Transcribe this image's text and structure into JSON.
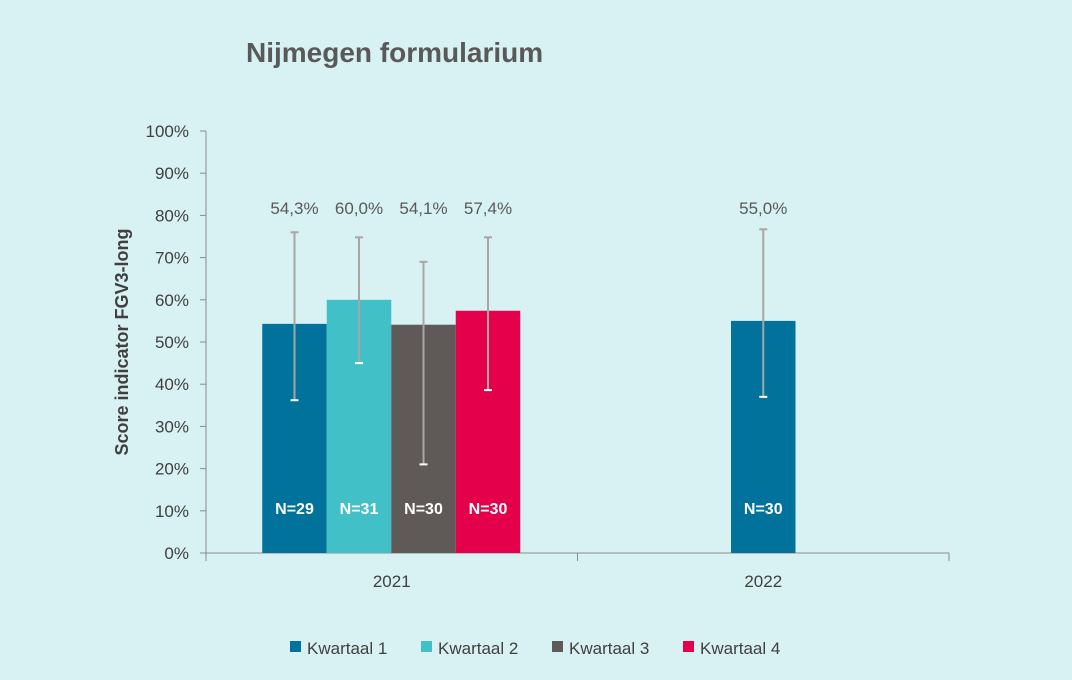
{
  "chart_data": {
    "type": "bar",
    "title": "Nijmegen formularium",
    "ylabel": "Score indicator FGV3-long",
    "xlabel": "",
    "ylim": [
      0,
      100
    ],
    "y_ticks": [
      "0%",
      "10%",
      "20%",
      "30%",
      "40%",
      "50%",
      "60%",
      "70%",
      "80%",
      "90%",
      "100%"
    ],
    "categories": [
      "2021",
      "2022"
    ],
    "legend_position": "bottom",
    "grid": false,
    "series": [
      {
        "name": "Kwartaal 1",
        "color": "#00729b",
        "values": [
          54.3,
          55.0
        ],
        "labels": [
          "54,3%",
          "55,0%"
        ],
        "n": [
          "N=29",
          "N=30"
        ],
        "err_low": [
          36.2,
          37.0
        ],
        "err_high": [
          76.0,
          76.7
        ]
      },
      {
        "name": "Kwartaal 2",
        "color": "#41c1c7",
        "values": [
          60.0,
          null
        ],
        "labels": [
          "60,0%",
          ""
        ],
        "n": [
          "N=31",
          ""
        ],
        "err_low": [
          45.0,
          null
        ],
        "err_high": [
          74.8,
          null
        ]
      },
      {
        "name": "Kwartaal 3",
        "color": "#5f5a57",
        "values": [
          54.1,
          null
        ],
        "labels": [
          "54,1%",
          ""
        ],
        "n": [
          "N=30",
          ""
        ],
        "err_low": [
          21.0,
          null
        ],
        "err_high": [
          69.0,
          null
        ]
      },
      {
        "name": "Kwartaal 4",
        "color": "#e4004b",
        "values": [
          57.4,
          null
        ],
        "labels": [
          "57,4%",
          ""
        ],
        "n": [
          "N=30",
          ""
        ],
        "err_low": [
          38.6,
          null
        ],
        "err_high": [
          74.8,
          null
        ]
      }
    ]
  }
}
